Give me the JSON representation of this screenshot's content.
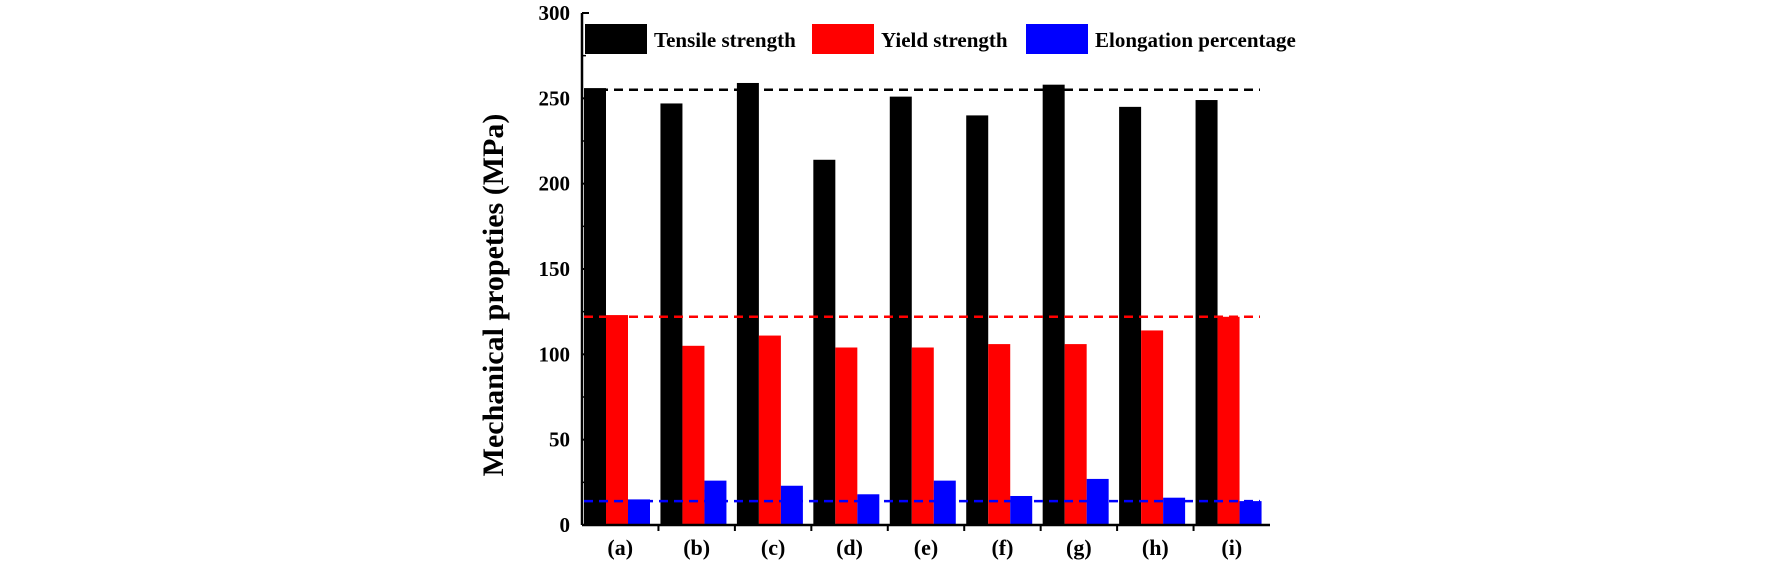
{
  "chart_data": {
    "type": "bar",
    "title": "",
    "xlabel": "",
    "ylabel": "Mechanical propeties (MPa)",
    "ylim": [
      0,
      300
    ],
    "yticks": [
      0,
      50,
      100,
      150,
      200,
      250,
      300
    ],
    "categories": [
      "(a)",
      "(b)",
      "(c)",
      "(d)",
      "(e)",
      "(f)",
      "(g)",
      "(h)",
      "(i)"
    ],
    "series": [
      {
        "name": "Tensile strength",
        "color": "#000000",
        "values": [
          256,
          247,
          259,
          214,
          251,
          240,
          258,
          245,
          249
        ]
      },
      {
        "name": "Yield strength",
        "color": "#ff0000",
        "values": [
          123,
          105,
          111,
          104,
          104,
          106,
          106,
          114,
          122
        ]
      },
      {
        "name": "Elongation percentage",
        "color": "#0000ff",
        "values": [
          15,
          26,
          23,
          18,
          26,
          17,
          27,
          16,
          14
        ]
      }
    ],
    "reference_lines": [
      {
        "series": "Tensile strength",
        "value": 255,
        "color": "#000000",
        "style": "dashed"
      },
      {
        "series": "Yield strength",
        "value": 122,
        "color": "#ff0000",
        "style": "dashed"
      },
      {
        "series": "Elongation percentage",
        "value": 14,
        "color": "#0000ff",
        "style": "dashed"
      }
    ],
    "legend_position": "top"
  }
}
